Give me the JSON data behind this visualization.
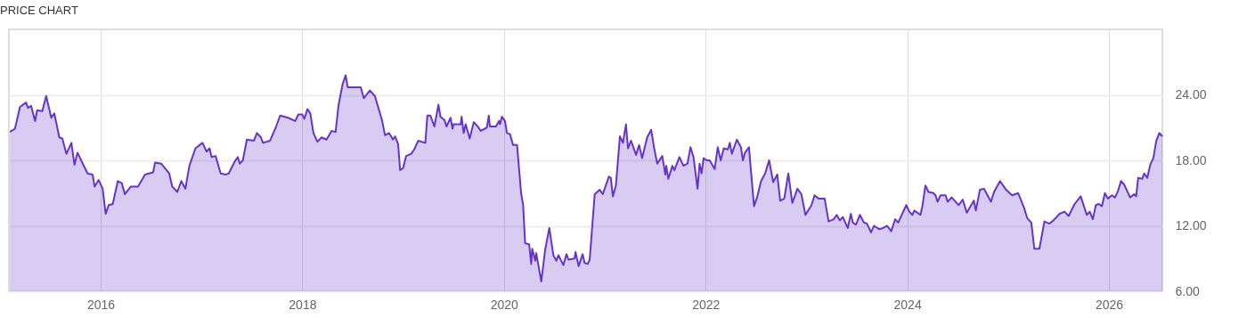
{
  "chart_data": {
    "type": "area",
    "title": "PRICE CHART",
    "xlim": [
      2015.09,
      2026.53
    ],
    "xticks": [
      2016,
      2018,
      2020,
      2022,
      2024,
      2026
    ],
    "ylim": [
      6,
      30
    ],
    "yticks": [
      {
        "value": 6,
        "label": "6.00"
      },
      {
        "value": 12,
        "label": "12.00"
      },
      {
        "value": 18,
        "label": "18.00"
      },
      {
        "value": 24,
        "label": "24.00"
      }
    ],
    "grid": true,
    "x": [
      2015.1,
      2015.15,
      2015.2,
      2015.26,
      2015.28,
      2015.31,
      2015.35,
      2015.37,
      2015.42,
      2015.46,
      2015.51,
      2015.54,
      2015.59,
      2015.62,
      2015.66,
      2015.71,
      2015.74,
      2015.77,
      2015.87,
      2015.92,
      2015.94,
      2015.98,
      2016.02,
      2016.05,
      2016.08,
      2016.12,
      2016.17,
      2016.21,
      2016.24,
      2016.3,
      2016.37,
      2016.44,
      2016.52,
      2016.54,
      2016.6,
      2016.68,
      2016.71,
      2016.76,
      2016.8,
      2016.84,
      2016.88,
      2016.94,
      2017.01,
      2017.05,
      2017.08,
      2017.1,
      2017.14,
      2017.19,
      2017.24,
      2017.27,
      2017.33,
      2017.36,
      2017.38,
      2017.41,
      2017.45,
      2017.52,
      2017.55,
      2017.59,
      2017.61,
      2017.68,
      2017.74,
      2017.78,
      2017.86,
      2017.93,
      2017.96,
      2018.0,
      2018.02,
      2018.05,
      2018.08,
      2018.11,
      2018.15,
      2018.19,
      2018.24,
      2018.29,
      2018.33,
      2018.36,
      2018.4,
      2018.43,
      2018.45,
      2018.5,
      2018.58,
      2018.61,
      2018.67,
      2018.72,
      2018.79,
      2018.82,
      2018.86,
      2018.9,
      2018.92,
      2018.95,
      2018.97,
      2019.0,
      2019.03,
      2019.08,
      2019.11,
      2019.15,
      2019.22,
      2019.24,
      2019.27,
      2019.31,
      2019.35,
      2019.37,
      2019.41,
      2019.43,
      2019.47,
      2019.49,
      2019.5,
      2019.57,
      2019.58,
      2019.6,
      2019.62,
      2019.66,
      2019.7,
      2019.74,
      2019.77,
      2019.83,
      2019.85,
      2019.86,
      2019.92,
      2019.95,
      2019.96,
      2019.98,
      2020.01,
      2020.03,
      2020.06,
      2020.09,
      2020.13,
      2020.17,
      2020.19,
      2020.21,
      2020.25,
      2020.27,
      2020.28,
      2020.31,
      2020.32,
      2020.37,
      2020.41,
      2020.45,
      2020.49,
      2020.52,
      2020.54,
      2020.59,
      2020.62,
      2020.64,
      2020.7,
      2020.71,
      2020.74,
      2020.78,
      2020.8,
      2020.83,
      2020.85,
      2020.9,
      2020.95,
      2020.98,
      2021.04,
      2021.06,
      2021.08,
      2021.11,
      2021.15,
      2021.18,
      2021.21,
      2021.23,
      2021.26,
      2021.31,
      2021.34,
      2021.37,
      2021.42,
      2021.46,
      2021.49,
      2021.52,
      2021.57,
      2021.6,
      2021.61,
      2021.63,
      2021.67,
      2021.69,
      2021.74,
      2021.78,
      2021.82,
      2021.85,
      2021.88,
      2021.92,
      2021.94,
      2021.96,
      2021.98,
      2022.01,
      2022.04,
      2022.09,
      2022.12,
      2022.15,
      2022.18,
      2022.22,
      2022.24,
      2022.26,
      2022.31,
      2022.35,
      2022.37,
      2022.39,
      2022.43,
      2022.48,
      2022.51,
      2022.55,
      2022.59,
      2022.63,
      2022.67,
      2022.71,
      2022.74,
      2022.78,
      2022.82,
      2022.86,
      2022.91,
      2022.95,
      2022.99,
      2023.05,
      2023.08,
      2023.12,
      2023.18,
      2023.22,
      2023.27,
      2023.3,
      2023.33,
      2023.36,
      2023.41,
      2023.44,
      2023.46,
      2023.49,
      2023.53,
      2023.57,
      2023.6,
      2023.64,
      2023.67,
      2023.72,
      2023.76,
      2023.8,
      2023.84,
      2023.88,
      2023.91,
      2023.95,
      2023.99,
      2024.02,
      2024.05,
      2024.07,
      2024.13,
      2024.15,
      2024.18,
      2024.21,
      2024.26,
      2024.28,
      2024.3,
      2024.33,
      2024.38,
      2024.4,
      2024.44,
      2024.51,
      2024.55,
      2024.59,
      2024.66,
      2024.68,
      2024.72,
      2024.76,
      2024.79,
      2024.83,
      2024.86,
      2024.92,
      2024.98,
      2025.04,
      2025.1,
      2025.16,
      2025.19,
      2025.23,
      2025.26,
      2025.31,
      2025.36,
      2025.41,
      2025.45,
      2025.51,
      2025.56,
      2025.6,
      2025.66,
      2025.72,
      2025.78,
      2025.81,
      2025.84,
      2025.87,
      2025.9,
      2025.93,
      2025.96,
      2025.99,
      2026.03,
      2026.06,
      2026.09,
      2026.12,
      2026.15,
      2026.21,
      2026.25,
      2026.27,
      2026.29,
      2026.33,
      2026.35,
      2026.38,
      2026.41,
      2026.44,
      2026.47,
      2026.5,
      2026.53
    ],
    "series": [
      {
        "color": "#6633cc",
        "values": [
          20.6,
          20.9,
          22.9,
          23.3,
          22.8,
          23.0,
          21.6,
          22.6,
          22.5,
          23.9,
          21.9,
          22.3,
          20.1,
          20.0,
          18.6,
          19.6,
          17.6,
          18.7,
          16.8,
          16.7,
          15.6,
          16.2,
          15.4,
          13.1,
          13.9,
          14.0,
          16.1,
          15.9,
          14.9,
          15.6,
          15.6,
          16.7,
          16.9,
          17.8,
          17.7,
          16.8,
          15.6,
          15.1,
          16.1,
          15.4,
          17.5,
          19.1,
          19.6,
          18.8,
          19.1,
          18.3,
          18.4,
          16.8,
          16.7,
          16.8,
          17.9,
          18.3,
          17.7,
          18.0,
          19.9,
          19.8,
          20.5,
          20.1,
          19.6,
          19.8,
          21.1,
          22.1,
          21.9,
          21.6,
          22.2,
          22.2,
          21.8,
          22.7,
          22.3,
          20.5,
          19.7,
          20.1,
          19.9,
          20.7,
          20.6,
          23.1,
          25.0,
          25.8,
          24.7,
          24.7,
          24.7,
          23.7,
          24.4,
          23.9,
          21.7,
          20.3,
          20.5,
          19.9,
          20.2,
          19.5,
          17.1,
          17.3,
          18.4,
          18.6,
          19.0,
          19.8,
          19.6,
          22.1,
          22.1,
          21.1,
          23.1,
          22.0,
          21.7,
          21.1,
          21.9,
          20.9,
          21.3,
          21.3,
          22.0,
          20.5,
          21.3,
          20.0,
          21.5,
          21.1,
          20.7,
          21.0,
          22.1,
          21.1,
          21.1,
          21.6,
          21.3,
          22.0,
          21.6,
          20.5,
          20.4,
          19.4,
          19.4,
          15.0,
          13.9,
          10.4,
          10.3,
          8.5,
          9.9,
          8.8,
          9.5,
          6.9,
          9.9,
          11.8,
          9.3,
          8.8,
          9.3,
          8.4,
          9.4,
          8.9,
          9.0,
          9.6,
          8.3,
          9.4,
          8.6,
          8.5,
          8.9,
          14.9,
          15.3,
          14.9,
          16.5,
          16.4,
          14.7,
          15.7,
          20.2,
          19.6,
          21.3,
          19.1,
          19.8,
          18.5,
          19.4,
          18.2,
          20.1,
          20.8,
          19.1,
          17.7,
          18.4,
          16.7,
          17.5,
          16.3,
          17.5,
          17.1,
          18.3,
          17.5,
          17.7,
          19.2,
          18.3,
          15.4,
          17.7,
          16.8,
          18.2,
          18.0,
          18.0,
          17.2,
          19.2,
          18.0,
          19.1,
          19.0,
          19.6,
          18.6,
          19.9,
          19.2,
          18.0,
          18.7,
          19.2,
          13.8,
          14.6,
          16.1,
          16.8,
          18.0,
          16.0,
          16.7,
          14.3,
          14.5,
          16.8,
          14.1,
          15.4,
          14.9,
          13.0,
          13.9,
          14.8,
          14.5,
          14.5,
          12.4,
          12.6,
          13.0,
          12.5,
          12.8,
          11.8,
          13.1,
          12.3,
          12.1,
          13.0,
          12.3,
          12.2,
          11.4,
          12.0,
          11.7,
          11.8,
          12.0,
          11.5,
          12.6,
          12.3,
          13.1,
          13.9,
          13.3,
          13.0,
          13.4,
          13.0,
          13.8,
          15.7,
          15.1,
          15.0,
          14.8,
          14.2,
          14.8,
          14.8,
          14.2,
          14.6,
          13.9,
          14.4,
          13.2,
          14.3,
          13.4,
          15.3,
          15.4,
          14.9,
          14.2,
          15.1,
          16.1,
          15.3,
          14.8,
          15.0,
          13.6,
          12.7,
          12.3,
          9.9,
          9.9,
          12.4,
          12.2,
          12.5,
          13.1,
          13.3,
          12.9,
          14.0,
          14.7,
          13.0,
          13.3,
          12.6,
          13.9,
          14.0,
          13.8,
          15.0,
          14.5,
          14.8,
          14.6,
          15.2,
          16.1,
          15.8,
          14.6,
          14.9,
          14.7,
          16.4,
          16.3,
          16.8,
          16.4,
          17.6,
          18.2,
          19.8,
          20.5,
          20.2
        ]
      }
    ]
  }
}
